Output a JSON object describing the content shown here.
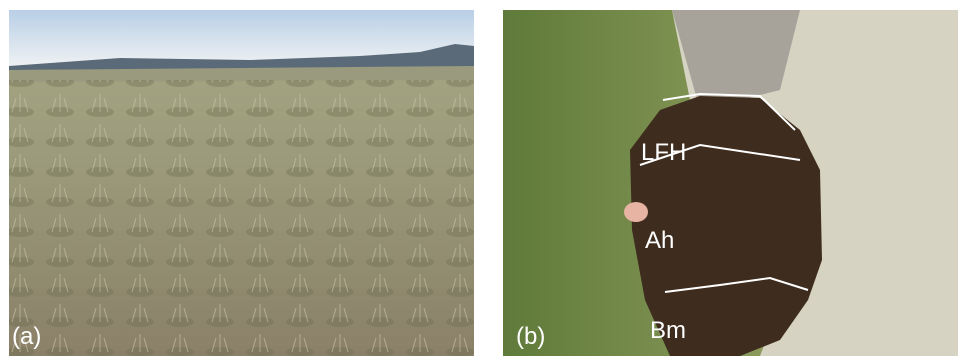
{
  "panels": [
    {
      "label": "(a)"
    },
    {
      "label": "(b)",
      "horizons": [
        "LFH",
        "Ah",
        "Bm"
      ]
    }
  ]
}
